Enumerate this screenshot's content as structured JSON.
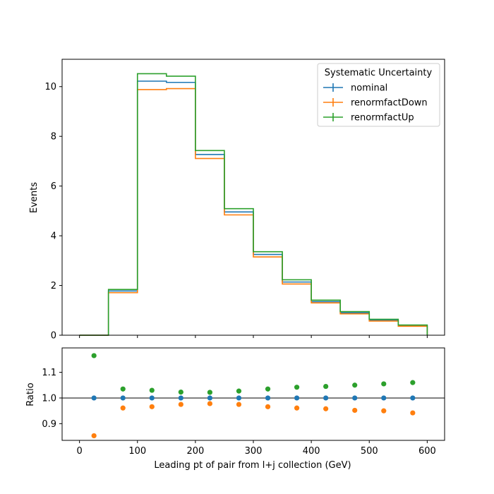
{
  "chart_data": [
    {
      "type": "step",
      "panel": "main",
      "ylabel": "Events",
      "xlim": [
        -30,
        630
      ],
      "ylim": [
        0,
        11.1
      ],
      "x_ticks": [
        0,
        100,
        200,
        300,
        400,
        500,
        600
      ],
      "y_ticks": [
        0,
        2,
        4,
        6,
        8,
        10
      ],
      "bin_edges": [
        0,
        50,
        100,
        150,
        200,
        250,
        300,
        350,
        400,
        450,
        500,
        550,
        600
      ],
      "series": [
        {
          "name": "nominal",
          "color": "#1f77b4",
          "values": [
            0.0,
            1.78,
            10.22,
            10.17,
            7.27,
            4.96,
            3.25,
            2.14,
            1.35,
            0.9,
            0.6,
            0.38
          ]
        },
        {
          "name": "renormfactDown",
          "color": "#ff7f0e",
          "values": [
            0.0,
            1.71,
            9.88,
            9.92,
            7.11,
            4.84,
            3.15,
            2.06,
            1.3,
            0.86,
            0.57,
            0.36
          ]
        },
        {
          "name": "renormfactUp",
          "color": "#2ca02c",
          "values": [
            0.0,
            1.84,
            10.52,
            10.42,
            7.43,
            5.09,
            3.36,
            2.23,
            1.41,
            0.95,
            0.64,
            0.41
          ]
        }
      ],
      "legend": {
        "title": "Systematic Uncertainty",
        "position": "upper right"
      },
      "grid": false
    },
    {
      "type": "scatter",
      "panel": "ratio",
      "xlabel": "Leading pt of pair from l+j collection (GeV)",
      "ylabel": "Ratio",
      "xlim": [
        -30,
        630
      ],
      "ylim": [
        0.835,
        1.195
      ],
      "x_ticks": [
        0,
        100,
        200,
        300,
        400,
        500,
        600
      ],
      "y_ticks": [
        0.9,
        1.0,
        1.1
      ],
      "y_tick_labels": [
        "0.9",
        "1.0",
        "1.1"
      ],
      "reference_line": 1.0,
      "x": [
        25,
        75,
        125,
        175,
        225,
        275,
        325,
        375,
        425,
        475,
        525,
        575
      ],
      "series": [
        {
          "name": "nominal",
          "color": "#1f77b4",
          "values": [
            1.0,
            1.0,
            1.0,
            1.0,
            1.0,
            1.0,
            1.0,
            1.0,
            1.0,
            1.0,
            1.0,
            1.0
          ]
        },
        {
          "name": "renormfactDown",
          "color": "#ff7f0e",
          "values": [
            0.853,
            0.961,
            0.966,
            0.975,
            0.978,
            0.975,
            0.966,
            0.961,
            0.958,
            0.952,
            0.95,
            0.942
          ]
        },
        {
          "name": "renormfactUp",
          "color": "#2ca02c",
          "values": [
            1.165,
            1.035,
            1.03,
            1.023,
            1.022,
            1.027,
            1.035,
            1.042,
            1.045,
            1.05,
            1.055,
            1.06
          ]
        }
      ],
      "grid": false
    }
  ]
}
